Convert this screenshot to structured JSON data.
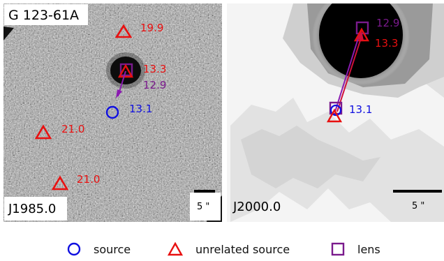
{
  "panels": {
    "left": {
      "title": "G 123-61A",
      "epoch": "J1985.0",
      "scale_label": "5 \"",
      "labels": {
        "unrelated_top": "19.9",
        "lens_mag": "13.3",
        "lens_mag2": "12.9",
        "source_mag": "13.1",
        "unrelated_mid": "21.0",
        "unrelated_bot": "21.0"
      }
    },
    "right": {
      "epoch": "J2000.0",
      "scale_label": "5 \"",
      "labels": {
        "lens_mag": "12.9",
        "lens_mag2": "13.3",
        "source_mag": "13.1"
      }
    }
  },
  "legend": {
    "source": "source",
    "unrelated": "unrelated source",
    "lens": "lens"
  },
  "colors": {
    "source": "#1010e0",
    "unrelated": "#e81010",
    "lens": "#7a1a8c",
    "arrow_left": "#8a1ab0",
    "arrow_right": "#d0103a"
  }
}
